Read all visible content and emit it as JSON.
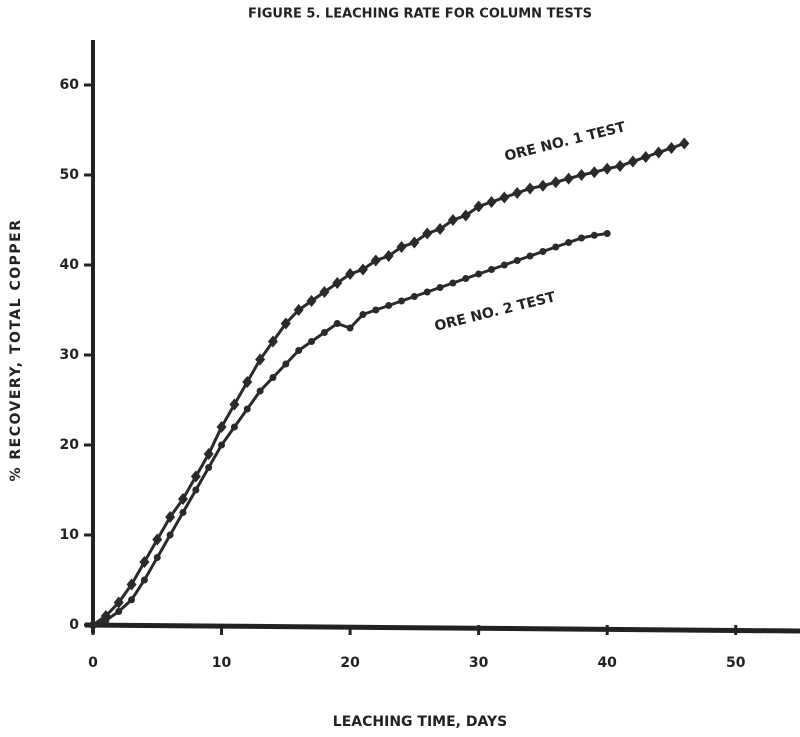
{
  "chart_data": {
    "type": "line",
    "title": "FIGURE 5. LEACHING RATE FOR COLUMN TESTS",
    "x_label": "LEACHING TIME, DAYS",
    "y_label": "% RECOVERY, TOTAL COPPER",
    "xlim": [
      0,
      55
    ],
    "ylim": [
      0,
      65
    ],
    "xticks": [
      0,
      10,
      20,
      30,
      40,
      50
    ],
    "yticks": [
      0,
      10,
      20,
      30,
      40,
      50,
      60
    ],
    "grid": false,
    "x": [
      0,
      1,
      2,
      3,
      4,
      5,
      6,
      7,
      8,
      9,
      10,
      11,
      12,
      13,
      14,
      15,
      16,
      17,
      18,
      19,
      20,
      21,
      22,
      23,
      24,
      25,
      26,
      27,
      28,
      29,
      30,
      31,
      32,
      33,
      34,
      35,
      36,
      37,
      38,
      39,
      40,
      41,
      42,
      43,
      44,
      45,
      46
    ],
    "series": [
      {
        "name": "ORE NO. 1 TEST",
        "color": "#2a2a2a",
        "marker": "diamond",
        "values": [
          0,
          1,
          2.5,
          4.5,
          7,
          9.5,
          12,
          14,
          16.5,
          19,
          22,
          24.5,
          27,
          29.5,
          31.5,
          33.5,
          35,
          36,
          37,
          38,
          39,
          39.5,
          40.5,
          41,
          42,
          42.5,
          43.5,
          44,
          45,
          45.5,
          46.5,
          47,
          47.5,
          48,
          48.5,
          48.8,
          49.2,
          49.6,
          50,
          50.3,
          50.7,
          51,
          51.5,
          52,
          52.5,
          53,
          53.5
        ]
      },
      {
        "name": "ORE NO. 2 TEST",
        "color": "#2a2a2a",
        "marker": "circle",
        "values": [
          0,
          0.5,
          1.5,
          2.8,
          5,
          7.5,
          10,
          12.5,
          15,
          17.5,
          20,
          22,
          24,
          26,
          27.5,
          29,
          30.5,
          31.5,
          32.5,
          33.5,
          33,
          34.5,
          35,
          35.5,
          36,
          36.5,
          37,
          37.5,
          38,
          38.5,
          39,
          39.5,
          40,
          40.5,
          41,
          41.5,
          42,
          42.5,
          43,
          43.3,
          43.5,
          null,
          null,
          null,
          null,
          null,
          null
        ]
      }
    ]
  }
}
